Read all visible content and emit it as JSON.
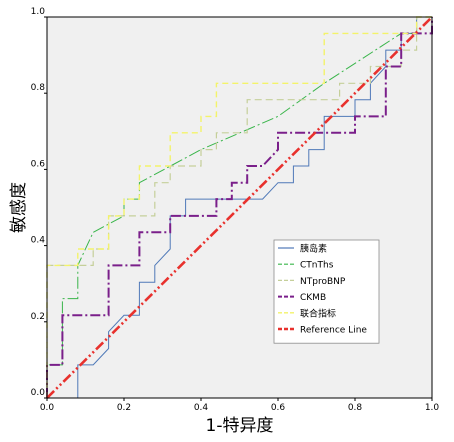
{
  "chart_data": {
    "type": "line",
    "title": "",
    "xlabel": "1-特异度",
    "ylabel": "敏感度",
    "xlim": [
      0,
      1
    ],
    "ylim": [
      0,
      1
    ],
    "xticks": [
      "0.0",
      "0.2",
      "0.4",
      "0.6",
      "0.8",
      "1.0"
    ],
    "yticks": [
      "0.0",
      "0.2",
      "0.4",
      "0.6",
      "0.8",
      "1.0"
    ],
    "grid": false,
    "legend_position": "lower-right",
    "plot_background": "#f0f0f0",
    "series": [
      {
        "name": "胰岛素",
        "color": "#4f79b8",
        "dash": "",
        "width": 1,
        "points": [
          [
            0,
            0
          ],
          [
            0.08,
            0
          ],
          [
            0.08,
            0.087
          ],
          [
            0.12,
            0.087
          ],
          [
            0.16,
            0.13
          ],
          [
            0.16,
            0.174
          ],
          [
            0.2,
            0.217
          ],
          [
            0.24,
            0.217
          ],
          [
            0.24,
            0.304
          ],
          [
            0.28,
            0.304
          ],
          [
            0.28,
            0.348
          ],
          [
            0.32,
            0.391
          ],
          [
            0.32,
            0.478
          ],
          [
            0.36,
            0.478
          ],
          [
            0.36,
            0.522
          ],
          [
            0.56,
            0.522
          ],
          [
            0.6,
            0.565
          ],
          [
            0.64,
            0.565
          ],
          [
            0.64,
            0.609
          ],
          [
            0.68,
            0.609
          ],
          [
            0.68,
            0.652
          ],
          [
            0.72,
            0.652
          ],
          [
            0.72,
            0.739
          ],
          [
            0.8,
            0.739
          ],
          [
            0.8,
            0.783
          ],
          [
            0.84,
            0.783
          ],
          [
            0.84,
            0.826
          ],
          [
            0.88,
            0.87
          ],
          [
            0.88,
            0.913
          ],
          [
            0.92,
            0.913
          ],
          [
            0.92,
            0.957
          ],
          [
            0.96,
            0.957
          ],
          [
            0.96,
            1
          ],
          [
            1,
            1
          ]
        ]
      },
      {
        "name": "CTnThs",
        "color": "#39b54a",
        "dash": "12 3 2 3",
        "width": 1,
        "points": [
          [
            0,
            0
          ],
          [
            0,
            0.087
          ],
          [
            0.04,
            0.087
          ],
          [
            0.04,
            0.261
          ],
          [
            0.08,
            0.261
          ],
          [
            0.08,
            0.348
          ],
          [
            0.12,
            0.435
          ],
          [
            0.2,
            0.478
          ],
          [
            0.2,
            0.522
          ],
          [
            0.24,
            0.522
          ],
          [
            0.24,
            0.565
          ],
          [
            0.4,
            0.652
          ],
          [
            0.6,
            0.739
          ],
          [
            0.72,
            0.826
          ],
          [
            0.92,
            0.957
          ],
          [
            0.96,
            0.957
          ],
          [
            0.96,
            1
          ],
          [
            1,
            1
          ]
        ]
      },
      {
        "name": "NTproBNP",
        "color": "#c5cf9a",
        "dash": "7 4",
        "width": 1.2,
        "points": [
          [
            0,
            0
          ],
          [
            0,
            0.348
          ],
          [
            0.12,
            0.348
          ],
          [
            0.12,
            0.391
          ],
          [
            0.16,
            0.391
          ],
          [
            0.16,
            0.478
          ],
          [
            0.28,
            0.478
          ],
          [
            0.28,
            0.565
          ],
          [
            0.32,
            0.565
          ],
          [
            0.32,
            0.609
          ],
          [
            0.4,
            0.609
          ],
          [
            0.4,
            0.652
          ],
          [
            0.44,
            0.652
          ],
          [
            0.44,
            0.696
          ],
          [
            0.52,
            0.696
          ],
          [
            0.52,
            0.783
          ],
          [
            0.76,
            0.783
          ],
          [
            0.76,
            0.826
          ],
          [
            0.84,
            0.826
          ],
          [
            0.84,
            0.87
          ],
          [
            0.92,
            0.87
          ],
          [
            0.92,
            0.913
          ],
          [
            0.96,
            0.913
          ],
          [
            0.96,
            0.957
          ],
          [
            0.96,
            1
          ],
          [
            1,
            1
          ]
        ]
      },
      {
        "name": "CKMB",
        "color": "#7a1f8a",
        "dash": "10 3 2 3",
        "width": 2,
        "points": [
          [
            0,
            0
          ],
          [
            0,
            0.087
          ],
          [
            0.04,
            0.087
          ],
          [
            0.04,
            0.217
          ],
          [
            0.16,
            0.217
          ],
          [
            0.16,
            0.348
          ],
          [
            0.24,
            0.348
          ],
          [
            0.24,
            0.435
          ],
          [
            0.32,
            0.435
          ],
          [
            0.32,
            0.478
          ],
          [
            0.44,
            0.478
          ],
          [
            0.44,
            0.522
          ],
          [
            0.48,
            0.522
          ],
          [
            0.48,
            0.565
          ],
          [
            0.52,
            0.565
          ],
          [
            0.52,
            0.609
          ],
          [
            0.56,
            0.609
          ],
          [
            0.6,
            0.652
          ],
          [
            0.6,
            0.696
          ],
          [
            0.8,
            0.696
          ],
          [
            0.8,
            0.739
          ],
          [
            0.88,
            0.739
          ],
          [
            0.88,
            0.87
          ],
          [
            0.92,
            0.87
          ],
          [
            0.92,
            0.957
          ],
          [
            1,
            0.957
          ],
          [
            1,
            1
          ]
        ]
      },
      {
        "name": "联合指标",
        "color": "#f3f36a",
        "dash": "6 4",
        "width": 1.4,
        "points": [
          [
            0,
            0
          ],
          [
            0,
            0.348
          ],
          [
            0.04,
            0.348
          ],
          [
            0.08,
            0.348
          ],
          [
            0.08,
            0.391
          ],
          [
            0.16,
            0.391
          ],
          [
            0.16,
            0.478
          ],
          [
            0.2,
            0.478
          ],
          [
            0.2,
            0.522
          ],
          [
            0.24,
            0.522
          ],
          [
            0.24,
            0.609
          ],
          [
            0.32,
            0.609
          ],
          [
            0.32,
            0.696
          ],
          [
            0.4,
            0.696
          ],
          [
            0.4,
            0.739
          ],
          [
            0.44,
            0.739
          ],
          [
            0.44,
            0.826
          ],
          [
            0.72,
            0.826
          ],
          [
            0.72,
            0.87
          ],
          [
            0.72,
            0.957
          ],
          [
            0.96,
            0.957
          ],
          [
            0.96,
            1
          ],
          [
            1,
            1
          ]
        ]
      },
      {
        "name": "Reference Line",
        "color": "#e8312d",
        "dash": "10 3 2 3 2 3",
        "width": 2.6,
        "points": [
          [
            0,
            0
          ],
          [
            1,
            1
          ]
        ]
      }
    ]
  }
}
